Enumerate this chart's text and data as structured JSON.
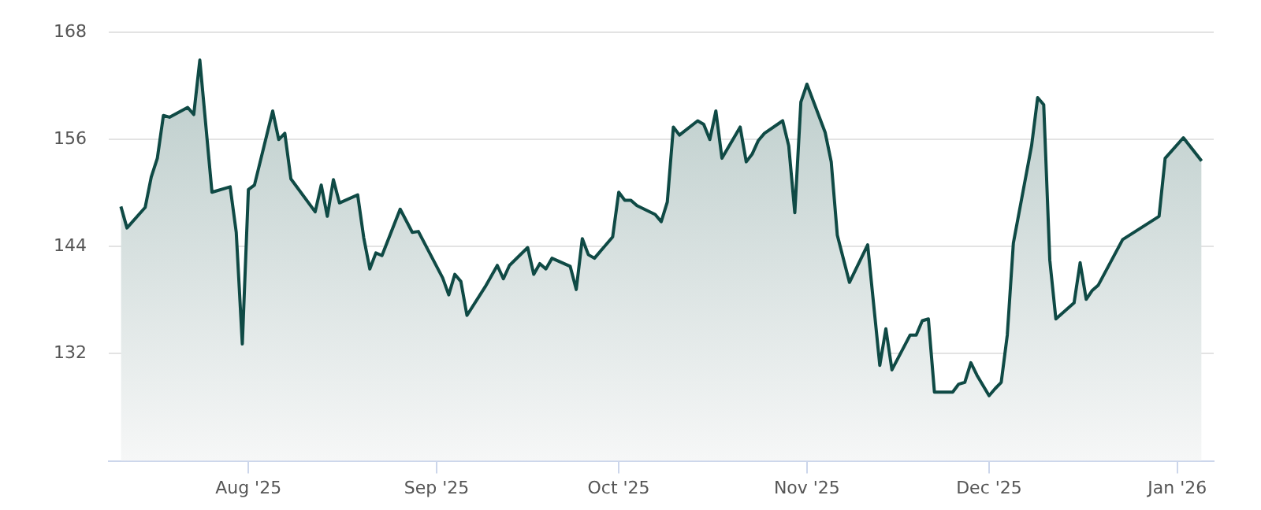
{
  "chart_data": {
    "type": "area",
    "color": "#0f4a45",
    "grid": "y",
    "legend": false,
    "marker": "none",
    "line_style": "solid",
    "x": [
      "2025-07-11",
      "2025-07-12",
      "2025-07-15",
      "2025-07-16",
      "2025-07-17",
      "2025-07-18",
      "2025-07-19",
      "2025-07-22",
      "2025-07-23",
      "2025-07-24",
      "2025-07-26",
      "2025-07-29",
      "2025-07-30",
      "2025-07-31",
      "2025-08-01",
      "2025-08-02",
      "2025-08-05",
      "2025-08-06",
      "2025-08-07",
      "2025-08-08",
      "2025-08-12",
      "2025-08-13",
      "2025-08-14",
      "2025-08-15",
      "2025-08-16",
      "2025-08-19",
      "2025-08-20",
      "2025-08-21",
      "2025-08-22",
      "2025-08-23",
      "2025-08-26",
      "2025-08-28",
      "2025-08-29",
      "2025-09-02",
      "2025-09-03",
      "2025-09-04",
      "2025-09-05",
      "2025-09-06",
      "2025-09-09",
      "2025-09-11",
      "2025-09-12",
      "2025-09-13",
      "2025-09-16",
      "2025-09-17",
      "2025-09-18",
      "2025-09-19",
      "2025-09-20",
      "2025-09-23",
      "2025-09-24",
      "2025-09-25",
      "2025-09-26",
      "2025-09-27",
      "2025-09-30",
      "2025-10-01",
      "2025-10-02",
      "2025-10-03",
      "2025-10-04",
      "2025-10-07",
      "2025-10-08",
      "2025-10-09",
      "2025-10-10",
      "2025-10-11",
      "2025-10-14",
      "2025-10-15",
      "2025-10-16",
      "2025-10-17",
      "2025-10-18",
      "2025-10-21",
      "2025-10-22",
      "2025-10-23",
      "2025-10-24",
      "2025-10-25",
      "2025-10-28",
      "2025-10-29",
      "2025-10-30",
      "2025-10-31",
      "2025-11-01",
      "2025-11-04",
      "2025-11-05",
      "2025-11-06",
      "2025-11-08",
      "2025-11-11",
      "2025-11-13",
      "2025-11-14",
      "2025-11-15",
      "2025-11-18",
      "2025-11-19",
      "2025-11-20",
      "2025-11-21",
      "2025-11-22",
      "2025-11-25",
      "2025-11-26",
      "2025-11-27",
      "2025-11-28",
      "2025-11-29",
      "2025-12-01",
      "2025-12-02",
      "2025-12-03",
      "2025-12-04",
      "2025-12-05",
      "2025-12-08",
      "2025-12-09",
      "2025-12-10",
      "2025-12-11",
      "2025-12-12",
      "2025-12-15",
      "2025-12-16",
      "2025-12-17",
      "2025-12-18",
      "2025-12-19",
      "2025-12-23",
      "2025-12-29",
      "2025-12-30",
      "2026-01-02",
      "2026-01-05"
    ],
    "values": [
      148.5,
      146.1,
      148.4,
      151.8,
      153.9,
      158.7,
      158.5,
      159.6,
      158.8,
      164.9,
      150.1,
      150.7,
      145.6,
      133.1,
      150.4,
      150.9,
      159.2,
      156.0,
      156.7,
      151.6,
      147.9,
      150.9,
      147.4,
      151.5,
      148.9,
      149.8,
      145.0,
      141.5,
      143.3,
      143.0,
      148.2,
      145.6,
      145.7,
      140.5,
      138.6,
      140.9,
      140.1,
      136.3,
      139.5,
      141.9,
      140.4,
      141.9,
      143.9,
      140.9,
      142.1,
      141.5,
      142.7,
      141.8,
      139.2,
      144.9,
      143.1,
      142.7,
      145.1,
      150.1,
      149.2,
      149.2,
      148.6,
      147.6,
      146.8,
      149.0,
      157.4,
      156.5,
      158.1,
      157.7,
      156.0,
      159.2,
      153.9,
      157.4,
      153.5,
      154.4,
      155.9,
      156.7,
      158.1,
      155.3,
      147.8,
      160.2,
      162.2,
      156.8,
      153.5,
      145.3,
      140.0,
      144.2,
      130.7,
      134.8,
      130.2,
      134.1,
      134.1,
      135.7,
      135.9,
      127.7,
      127.7,
      128.6,
      128.8,
      131.0,
      129.6,
      127.3,
      128.1,
      128.8,
      134.1,
      144.4,
      155.3,
      160.7,
      159.9,
      142.5,
      135.9,
      137.7,
      142.2,
      138.1,
      139.1,
      139.7,
      144.8,
      147.4,
      153.9,
      156.2,
      153.6
    ],
    "xlim": [
      "2025-07-09",
      "2026-01-07"
    ],
    "xticks": [
      {
        "value": "2025-08-01",
        "label": "Aug '25"
      },
      {
        "value": "2025-09-01",
        "label": "Sep '25"
      },
      {
        "value": "2025-10-01",
        "label": "Oct '25"
      },
      {
        "value": "2025-11-01",
        "label": "Nov '25"
      },
      {
        "value": "2025-12-01",
        "label": "Dec '25"
      },
      {
        "value": "2026-01-01",
        "label": "Jan '26"
      }
    ],
    "ylim": [
      120,
      168
    ],
    "yticks": [
      132,
      144,
      156,
      168
    ]
  }
}
